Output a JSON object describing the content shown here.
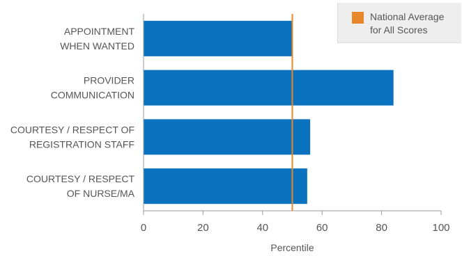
{
  "chart_data": {
    "type": "bar",
    "orientation": "horizontal",
    "categories": [
      [
        "APPOINTMENT",
        "WHEN WANTED"
      ],
      [
        "PROVIDER",
        "COMMUNICATION"
      ],
      [
        "COURTESY / RESPECT OF",
        "REGISTRATION STAFF"
      ],
      [
        "COURTESY / RESPECT",
        "OF NURSE/MA"
      ]
    ],
    "values": [
      50,
      84,
      56,
      55
    ],
    "reference_line": {
      "value": 50,
      "label": "National Average for All Scores"
    },
    "xlabel": "Percentile",
    "xlim": [
      0,
      100
    ],
    "xticks": [
      0,
      20,
      40,
      60,
      80,
      100
    ],
    "grid": false,
    "legend_position": "top-right"
  },
  "legend": {
    "label": "National Average for All Scores"
  },
  "colors": {
    "bar": "#0a72bf",
    "reference": "#e8862a",
    "axis": "#999999",
    "text": "#555555"
  }
}
